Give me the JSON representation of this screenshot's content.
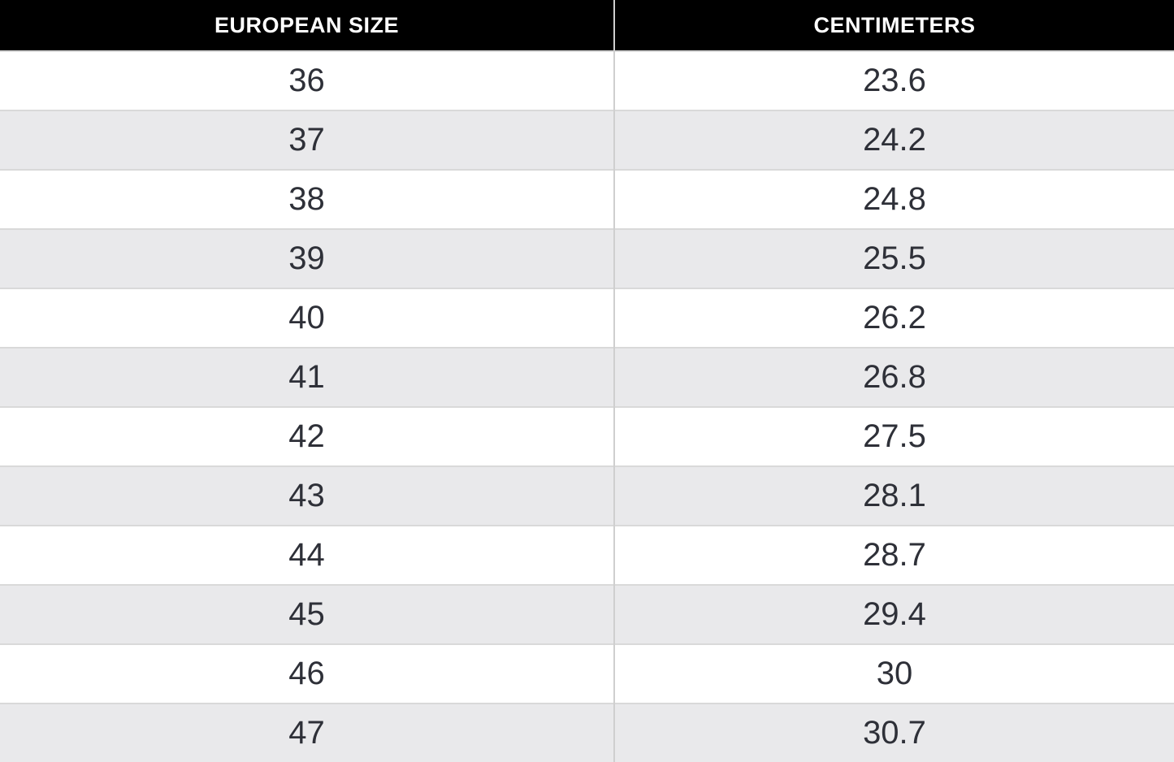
{
  "chart_data": {
    "type": "table",
    "columns": [
      "EUROPEAN SIZE",
      "CENTIMETERS"
    ],
    "rows": [
      [
        "36",
        "23.6"
      ],
      [
        "37",
        "24.2"
      ],
      [
        "38",
        "24.8"
      ],
      [
        "39",
        "25.5"
      ],
      [
        "40",
        "26.2"
      ],
      [
        "41",
        "26.8"
      ],
      [
        "42",
        "27.5"
      ],
      [
        "43",
        "28.1"
      ],
      [
        "44",
        "28.7"
      ],
      [
        "45",
        "29.4"
      ],
      [
        "46",
        "30"
      ],
      [
        "47",
        "30.7"
      ]
    ]
  },
  "colors": {
    "header_bg": "#000000",
    "header_text": "#ffffff",
    "row_bg": "#ffffff",
    "row_alt_bg": "#e9e9eb",
    "cell_text": "#2e3038",
    "divider": "#cfcfcf",
    "row_line": "#d9d9d9"
  }
}
